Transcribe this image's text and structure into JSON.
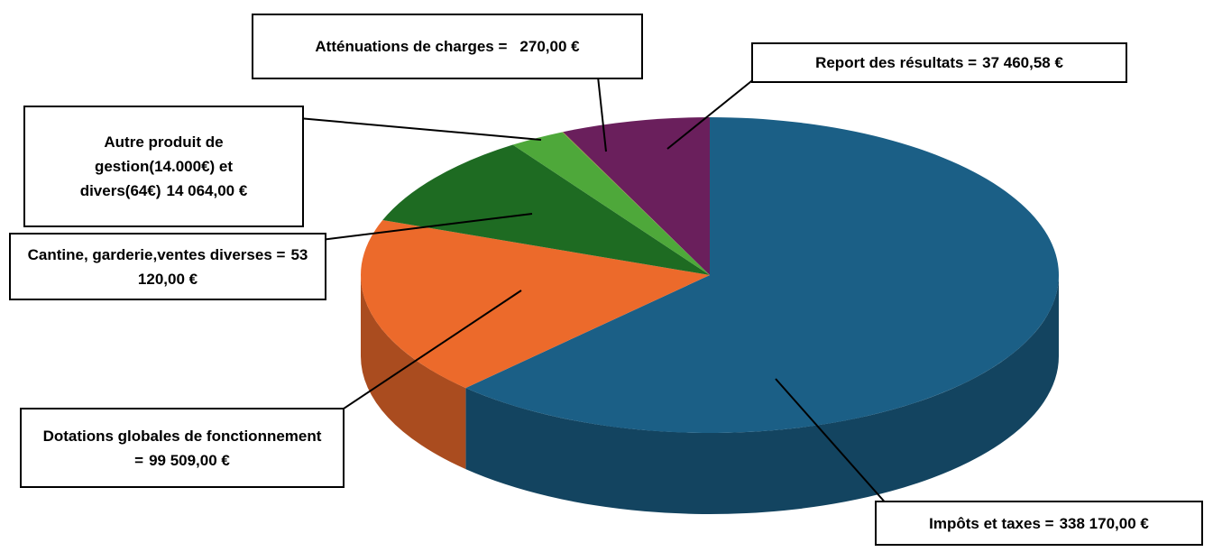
{
  "chart_data": {
    "type": "pie3d",
    "categories": [
      "Impôts et taxes =",
      "Dotations globales de fonctionnement =",
      "Cantine, garderie,ventes diverses =",
      "Autre produit de gestion(14.000€) et divers(64€)",
      "Atténuations de charges =",
      "Report des résultats ="
    ],
    "values": [
      338170,
      99509,
      53120,
      14064,
      270,
      37460.58
    ],
    "value_labels": [
      "338 170,00 €",
      "99 509,00 €",
      "53 120,00 €",
      "14 064,00 €",
      "270,00 €",
      "37 460,58 €"
    ],
    "colors": [
      "#1b5f86",
      "#ec6a2b",
      "#1e6b22",
      "#4ea83a",
      "#8a8a3a",
      "#6a1f5c"
    ]
  }
}
